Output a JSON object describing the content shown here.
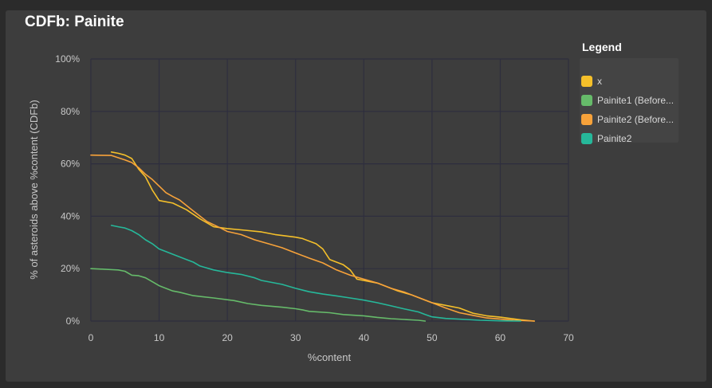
{
  "chart_data": {
    "type": "line",
    "title": "CDFb: Painite",
    "xlabel": "%content",
    "ylabel": "% of asteroids above %content (CDFb)",
    "xlim": [
      0,
      70
    ],
    "ylim": [
      0,
      100
    ],
    "x_ticks": [
      "0",
      "10",
      "20",
      "30",
      "40",
      "50",
      "60",
      "70"
    ],
    "y_ticks": [
      "0%",
      "20%",
      "40%",
      "60%",
      "80%",
      "100%"
    ],
    "grid": true,
    "legend_title": "Legend",
    "legend_position": "right",
    "series": [
      {
        "name": "x",
        "color": "#f5c02a",
        "points": [
          [
            3,
            64.5
          ],
          [
            4,
            64
          ],
          [
            5,
            63.3
          ],
          [
            6,
            62
          ],
          [
            7,
            58
          ],
          [
            8,
            55
          ],
          [
            9,
            50
          ],
          [
            10,
            46
          ],
          [
            12,
            45
          ],
          [
            14,
            42.5
          ],
          [
            16,
            39
          ],
          [
            18,
            36
          ],
          [
            20,
            35.3
          ],
          [
            22,
            34.8
          ],
          [
            25,
            34
          ],
          [
            27,
            33
          ],
          [
            30,
            32
          ],
          [
            31,
            31.5
          ],
          [
            33,
            29.5
          ],
          [
            34,
            27.5
          ],
          [
            35,
            23.5
          ],
          [
            37,
            21.5
          ],
          [
            38,
            19.5
          ],
          [
            39,
            16
          ],
          [
            42,
            14.5
          ],
          [
            45,
            11.5
          ],
          [
            47,
            10
          ],
          [
            49,
            8
          ],
          [
            50,
            7
          ],
          [
            52,
            6
          ],
          [
            54,
            5
          ],
          [
            56,
            3
          ],
          [
            58,
            2
          ],
          [
            60,
            1.5
          ],
          [
            63,
            0.5
          ],
          [
            65,
            0
          ]
        ]
      },
      {
        "name": "Painite1 (Before...",
        "color": "#66bb6a",
        "points": [
          [
            0,
            20
          ],
          [
            2,
            19.8
          ],
          [
            4,
            19.5
          ],
          [
            5,
            19
          ],
          [
            6,
            17.5
          ],
          [
            7,
            17.3
          ],
          [
            8,
            16.5
          ],
          [
            9,
            15
          ],
          [
            10,
            13.5
          ],
          [
            12,
            11.5
          ],
          [
            13,
            11
          ],
          [
            15,
            9.7
          ],
          [
            18,
            8.8
          ],
          [
            21,
            7.8
          ],
          [
            23,
            6.7
          ],
          [
            25,
            6
          ],
          [
            28,
            5.3
          ],
          [
            30,
            4.7
          ],
          [
            31,
            4.3
          ],
          [
            32,
            3.7
          ],
          [
            35,
            3.2
          ],
          [
            37,
            2.5
          ],
          [
            40,
            2
          ],
          [
            42,
            1.4
          ],
          [
            44,
            0.9
          ],
          [
            46,
            0.6
          ],
          [
            48,
            0.3
          ],
          [
            49,
            0
          ]
        ]
      },
      {
        "name": "Painite2 (Before...",
        "color": "#f7a23a",
        "points": [
          [
            0,
            63.3
          ],
          [
            3,
            63.2
          ],
          [
            5,
            61.5
          ],
          [
            6,
            60.5
          ],
          [
            7,
            58.5
          ],
          [
            8,
            56
          ],
          [
            9,
            54
          ],
          [
            10,
            51.5
          ],
          [
            11,
            49
          ],
          [
            12,
            47.5
          ],
          [
            13,
            46.2
          ],
          [
            15,
            42
          ],
          [
            17,
            38
          ],
          [
            19,
            35.5
          ],
          [
            20,
            34.2
          ],
          [
            22,
            33
          ],
          [
            24,
            31
          ],
          [
            26,
            29.5
          ],
          [
            28,
            28
          ],
          [
            30,
            26
          ],
          [
            32,
            24
          ],
          [
            34,
            22.2
          ],
          [
            36,
            19.5
          ],
          [
            38,
            17.5
          ],
          [
            40,
            16
          ],
          [
            42,
            14.5
          ],
          [
            44,
            12.5
          ],
          [
            46,
            11
          ],
          [
            48,
            9
          ],
          [
            50,
            7
          ],
          [
            52,
            5
          ],
          [
            54,
            3.2
          ],
          [
            56,
            2.2
          ],
          [
            58,
            1.2
          ],
          [
            60,
            0.8
          ],
          [
            62,
            0.3
          ],
          [
            65,
            0
          ]
        ]
      },
      {
        "name": "Painite2",
        "color": "#26b89a",
        "points": [
          [
            3,
            36.5
          ],
          [
            4,
            36
          ],
          [
            5,
            35.5
          ],
          [
            6,
            34.5
          ],
          [
            7,
            33
          ],
          [
            8,
            31
          ],
          [
            9,
            29.5
          ],
          [
            10,
            27.5
          ],
          [
            11,
            26.5
          ],
          [
            12,
            25.5
          ],
          [
            14,
            23.5
          ],
          [
            15,
            22.5
          ],
          [
            16,
            21
          ],
          [
            18,
            19.5
          ],
          [
            20,
            18.5
          ],
          [
            22,
            17.8
          ],
          [
            24,
            16.5
          ],
          [
            25,
            15.5
          ],
          [
            28,
            14
          ],
          [
            30,
            12.5
          ],
          [
            32,
            11.2
          ],
          [
            34,
            10.3
          ],
          [
            36,
            9.6
          ],
          [
            38,
            8.8
          ],
          [
            40,
            8
          ],
          [
            42,
            7
          ],
          [
            44,
            5.8
          ],
          [
            46,
            4.6
          ],
          [
            48,
            3.5
          ],
          [
            49,
            2.5
          ],
          [
            50,
            1.6
          ],
          [
            52,
            1
          ],
          [
            55,
            0.6
          ],
          [
            57,
            0.3
          ],
          [
            60,
            0.1
          ],
          [
            63,
            0
          ]
        ]
      }
    ]
  }
}
